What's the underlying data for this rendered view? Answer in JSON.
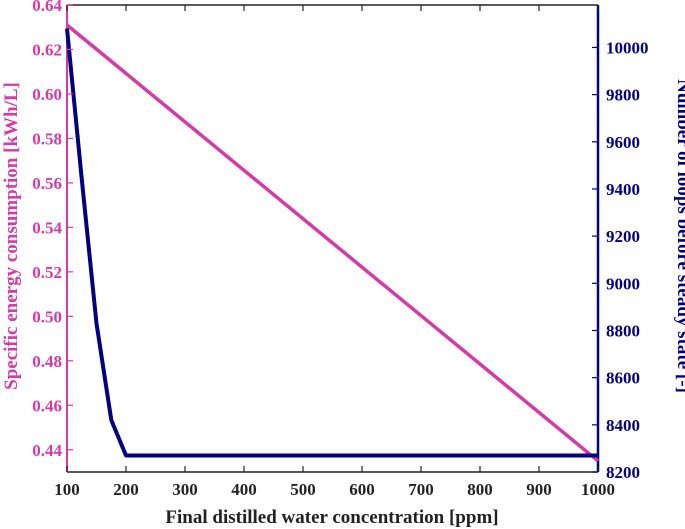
{
  "chart_data": {
    "type": "line",
    "xlabel": "Final distilled water concentration [ppm]",
    "ylabel_left": "Specific energy consumption [kWh/L]",
    "ylabel_right": "Number of loops before steady state [-]",
    "xlim": [
      100,
      1000
    ],
    "ylim_left": [
      0.43,
      0.64
    ],
    "ylim_right": [
      8200,
      10180
    ],
    "x_ticks": [
      100,
      200,
      300,
      400,
      500,
      600,
      700,
      800,
      900,
      1000
    ],
    "y_left_ticks": [
      0.44,
      0.46,
      0.48,
      0.5,
      0.52,
      0.54,
      0.56,
      0.58,
      0.6,
      0.62,
      0.64
    ],
    "y_left_tick_labels": [
      "0.44",
      "0.46",
      "0.48",
      "0.50",
      "0.52",
      "0.54",
      "0.56",
      "0.58",
      "0.60",
      "0.62",
      "0.64"
    ],
    "y_right_ticks": [
      8200,
      8400,
      8600,
      8800,
      9000,
      9200,
      9400,
      9600,
      9800,
      10000
    ],
    "series": [
      {
        "axis": "left",
        "color": "#d63aa5",
        "x": [
          100,
          1000
        ],
        "y": [
          0.631,
          0.435
        ]
      },
      {
        "axis": "right",
        "color": "#000080",
        "x": [
          100,
          125,
          150,
          175,
          200,
          1000
        ],
        "y": [
          10080,
          9440,
          8830,
          8420,
          8270,
          8270
        ]
      }
    ],
    "grid": false,
    "legend": "none"
  }
}
